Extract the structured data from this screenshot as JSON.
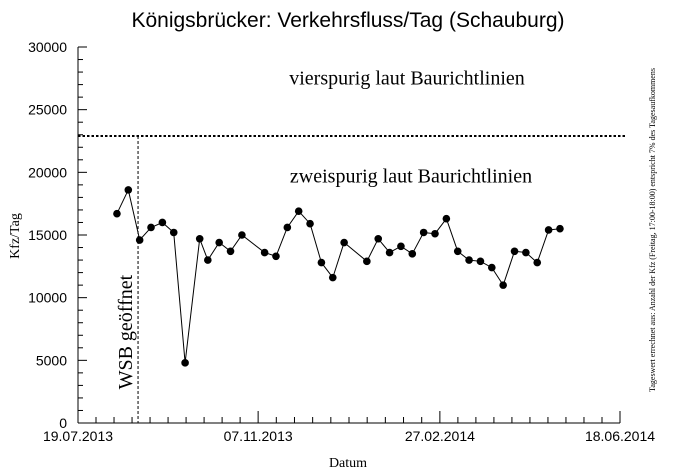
{
  "chart_data": {
    "type": "line",
    "title": "Königsbrücker: Verkehrsfluss/Tag (Schauburg)",
    "xlabel": "Datum",
    "ylabel": "Kfz/Tag",
    "ylim": [
      0,
      30000
    ],
    "xlim": [
      "2013-07-19",
      "2014-06-18"
    ],
    "x_ticks": [
      {
        "date": "2013-07-19",
        "label": "19.07.2013"
      },
      {
        "date": "2013-11-07",
        "label": "07.11.2013"
      },
      {
        "date": "2014-02-27",
        "label": "27.02.2014"
      },
      {
        "date": "2014-06-18",
        "label": "18.06.2014"
      }
    ],
    "y_ticks": [
      0,
      5000,
      10000,
      15000,
      20000,
      25000,
      30000
    ],
    "grid": false,
    "series": [
      {
        "color": "#000000",
        "marker": "circle",
        "points": [
          {
            "x": "2013-08-12",
            "y": 16700
          },
          {
            "x": "2013-08-19",
            "y": 18600
          },
          {
            "x": "2013-08-26",
            "y": 14600
          },
          {
            "x": "2013-09-02",
            "y": 15600
          },
          {
            "x": "2013-09-09",
            "y": 16000
          },
          {
            "x": "2013-09-16",
            "y": 15200
          },
          {
            "x": "2013-09-23",
            "y": 4800
          },
          {
            "x": "2013-10-02",
            "y": 14700
          },
          {
            "x": "2013-10-07",
            "y": 13000
          },
          {
            "x": "2013-10-14",
            "y": 14400
          },
          {
            "x": "2013-10-21",
            "y": 13700
          },
          {
            "x": "2013-10-28",
            "y": 15000
          },
          {
            "x": "2013-11-11",
            "y": 13600
          },
          {
            "x": "2013-11-18",
            "y": 13300
          },
          {
            "x": "2013-11-25",
            "y": 15600
          },
          {
            "x": "2013-12-02",
            "y": 16900
          },
          {
            "x": "2013-12-09",
            "y": 15900
          },
          {
            "x": "2013-12-16",
            "y": 12800
          },
          {
            "x": "2013-12-23",
            "y": 11600
          },
          {
            "x": "2013-12-30",
            "y": 14400
          },
          {
            "x": "2014-01-13",
            "y": 12900
          },
          {
            "x": "2014-01-20",
            "y": 14700
          },
          {
            "x": "2014-01-27",
            "y": 13600
          },
          {
            "x": "2014-02-03",
            "y": 14100
          },
          {
            "x": "2014-02-10",
            "y": 13500
          },
          {
            "x": "2014-02-17",
            "y": 15200
          },
          {
            "x": "2014-02-24",
            "y": 15100
          },
          {
            "x": "2014-03-03",
            "y": 16300
          },
          {
            "x": "2014-03-10",
            "y": 13700
          },
          {
            "x": "2014-03-17",
            "y": 13000
          },
          {
            "x": "2014-03-24",
            "y": 12900
          },
          {
            "x": "2014-03-31",
            "y": 12400
          },
          {
            "x": "2014-04-07",
            "y": 11000
          },
          {
            "x": "2014-04-14",
            "y": 13700
          },
          {
            "x": "2014-04-21",
            "y": 13600
          },
          {
            "x": "2014-04-28",
            "y": 12800
          },
          {
            "x": "2014-05-05",
            "y": 15400
          },
          {
            "x": "2014-05-12",
            "y": 15500
          }
        ]
      }
    ],
    "reference_lines": {
      "horizontal": {
        "y": 22900,
        "style": "dotted"
      },
      "vertical": {
        "x": "2013-08-25",
        "style": "dashed",
        "label": "WSB geöffnet"
      }
    },
    "annotations": {
      "upper": {
        "text": "vierspurig laut Baurichtlinien",
        "y": 27000
      },
      "lower": {
        "text": "zweispurig laut Baurichtlinien",
        "y": 19200
      }
    },
    "side_note": "Tageswert errechnet aus: Anzahl der Kfz (Freitag, 17:00-18:00) entspricht 7% des Tagesaufkommens"
  }
}
